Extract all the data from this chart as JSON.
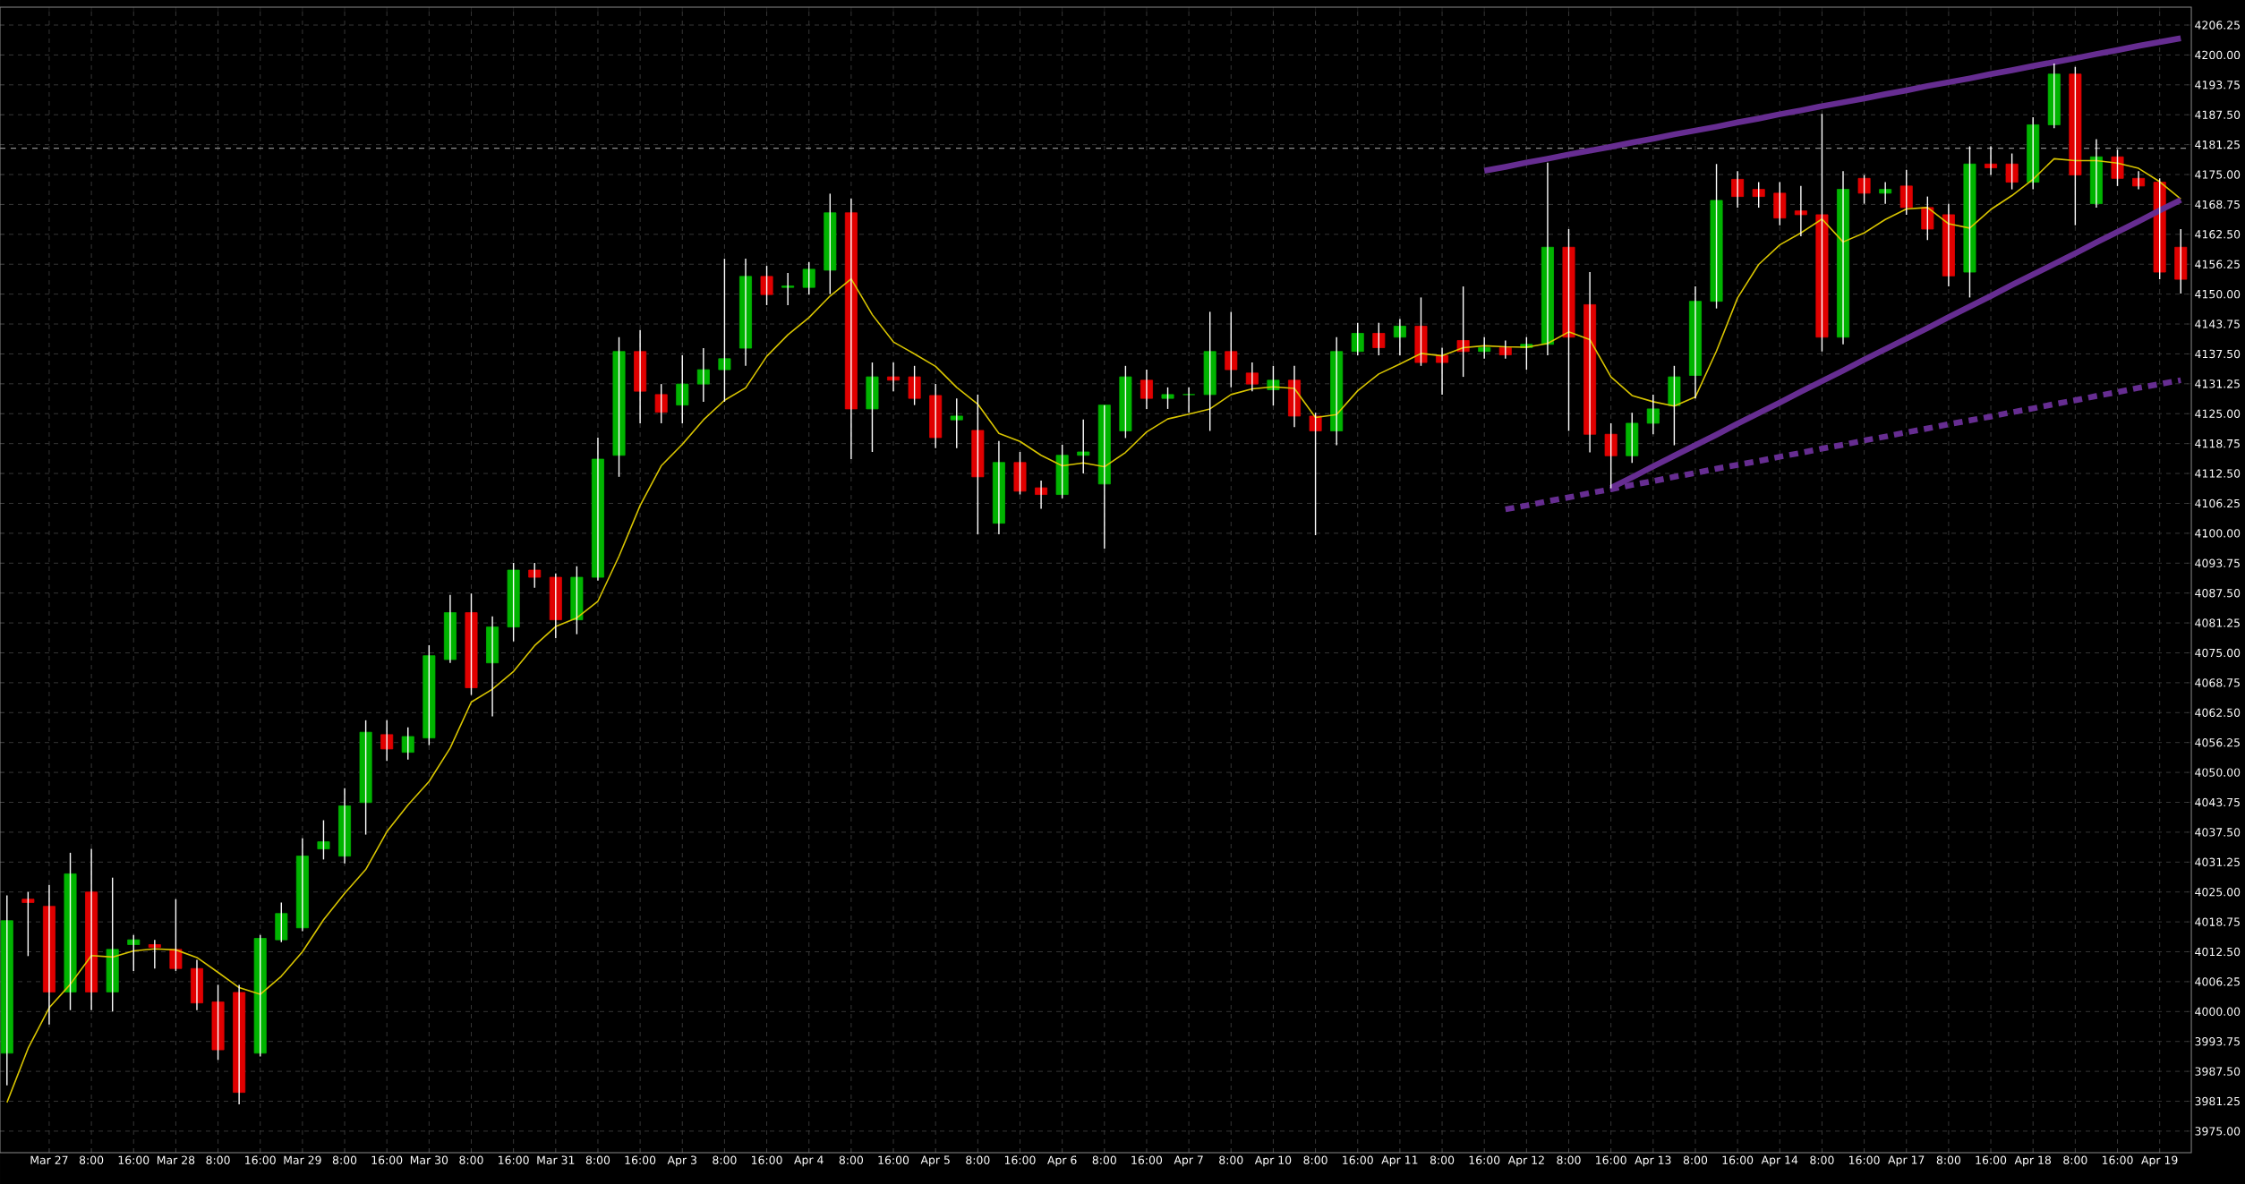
{
  "chart_data": {
    "type": "candlestick",
    "categories": [
      null,
      null,
      "Mar 27",
      null,
      "8:00",
      null,
      "16:00",
      null,
      "Mar 28",
      null,
      "8:00",
      null,
      "16:00",
      null,
      "Mar 29",
      null,
      "8:00",
      null,
      "16:00",
      null,
      "Mar 30",
      null,
      "8:00",
      null,
      "16:00",
      null,
      "Mar 31",
      null,
      "8:00",
      null,
      "16:00",
      null,
      "Apr 3",
      null,
      "8:00",
      null,
      "16:00",
      null,
      "Apr 4",
      null,
      "8:00",
      null,
      "16:00",
      null,
      "Apr 5",
      null,
      "8:00",
      null,
      "16:00",
      null,
      "Apr 6",
      null,
      "8:00",
      null,
      "16:00",
      null,
      "Apr 7",
      null,
      "8:00",
      null,
      "Apr 10",
      null,
      "8:00",
      null,
      "16:00",
      null,
      "Apr 11",
      null,
      "8:00",
      null,
      "16:00",
      null,
      "Apr 12",
      null,
      "8:00",
      null,
      "16:00",
      null,
      "Apr 13",
      null,
      "8:00",
      null,
      "16:00",
      null,
      "Apr 14",
      null,
      "8:00",
      null,
      "16:00",
      null,
      "Apr 17",
      null,
      "8:00",
      null,
      "16:00",
      null,
      "Apr 18",
      null,
      "8:00",
      null,
      "16:00",
      null,
      "Apr 19",
      null
    ],
    "ylim": [
      3970.5,
      4210
    ],
    "yticks": [
      {
        "value": 3975,
        "label": "3975.00"
      },
      {
        "value": 3981.25,
        "label": "3981.25"
      },
      {
        "value": 3987.5,
        "label": "3987.50"
      },
      {
        "value": 3993.75,
        "label": "3993.75"
      },
      {
        "value": 4000,
        "label": "4000.00"
      },
      {
        "value": 4006.25,
        "label": "4006.25"
      },
      {
        "value": 4012.5,
        "label": "4012.50"
      },
      {
        "value": 4018.75,
        "label": "4018.75"
      },
      {
        "value": 4025,
        "label": "4025.00"
      },
      {
        "value": 4031.25,
        "label": "4031.25"
      },
      {
        "value": 4037.5,
        "label": "4037.50"
      },
      {
        "value": 4043.75,
        "label": "4043.75"
      },
      {
        "value": 4050,
        "label": "4050.00"
      },
      {
        "value": 4056.25,
        "label": "4056.25"
      },
      {
        "value": 4062.5,
        "label": "4062.50"
      },
      {
        "value": 4068.75,
        "label": "4068.75"
      },
      {
        "value": 4075,
        "label": "4075.00"
      },
      {
        "value": 4081.25,
        "label": "4081.25"
      },
      {
        "value": 4087.5,
        "label": "4087.50"
      },
      {
        "value": 4093.75,
        "label": "4093.75"
      },
      {
        "value": 4100,
        "label": "4100.00"
      },
      {
        "value": 4106.25,
        "label": "4106.25"
      },
      {
        "value": 4112.5,
        "label": "4112.50"
      },
      {
        "value": 4118.75,
        "label": "4118.75"
      },
      {
        "value": 4125,
        "label": "4125.00"
      },
      {
        "value": 4131.25,
        "label": "4131.25"
      },
      {
        "value": 4137.5,
        "label": "4137.50"
      },
      {
        "value": 4143.75,
        "label": "4143.75"
      },
      {
        "value": 4150,
        "label": "4150.00"
      },
      {
        "value": 4156.25,
        "label": "4156.25"
      },
      {
        "value": 4162.5,
        "label": "4162.50"
      },
      {
        "value": 4168.75,
        "label": "4168.75"
      },
      {
        "value": 4175,
        "label": "4175.00"
      },
      {
        "value": 4181.25,
        "label": "4181.25"
      },
      {
        "value": 4187.5,
        "label": "4187.50"
      },
      {
        "value": 4193.75,
        "label": "4193.75"
      },
      {
        "value": 4200,
        "label": "4200.00"
      },
      {
        "value": 4206.25,
        "label": "4206.25"
      }
    ],
    "grid": true,
    "ref_lines": [
      {
        "axis": "y",
        "value": 4180.5,
        "color": "#8c8c8c",
        "line_style": "dashed"
      }
    ],
    "series": [
      {
        "ohlc": [
          [
            3991.3,
            4024.3,
            3984.6,
            4019.0
          ],
          [
            4023.5,
            4025.0,
            4011.6,
            4022.8
          ],
          [
            4022.0,
            4026.5,
            3997.3,
            4004.1
          ],
          [
            4004.1,
            4033.2,
            4000.3,
            4028.8
          ],
          [
            4025.0,
            4034.0,
            4000.3,
            4004.1
          ],
          [
            4004.1,
            4028.0,
            4000.0,
            4013.0
          ],
          [
            4014.0,
            4016.0,
            4008.5,
            4015.0
          ],
          [
            4014.0,
            4015.0,
            4009.0,
            4013.4
          ],
          [
            4013.0,
            4023.5,
            4008.5,
            4009.0
          ],
          [
            4009.0,
            4010.8,
            4000.3,
            4001.8
          ],
          [
            4002.0,
            4005.6,
            3989.9,
            3992.0
          ],
          [
            4004.0,
            4005.6,
            3980.6,
            3983.1
          ],
          [
            3991.3,
            4016.0,
            3990.6,
            4015.3
          ],
          [
            4015.0,
            4022.8,
            4014.5,
            4020.5
          ],
          [
            4017.5,
            4036.2,
            4016.8,
            4032.5
          ],
          [
            4034.0,
            4040.0,
            4031.8,
            4035.5
          ],
          [
            4032.5,
            4046.7,
            4031.0,
            4043.0
          ],
          [
            4043.7,
            4060.9,
            4037.0,
            4058.4
          ],
          [
            4057.9,
            4060.9,
            4052.4,
            4054.9
          ],
          [
            4054.2,
            4059.4,
            4052.7,
            4057.5
          ],
          [
            4057.2,
            4076.6,
            4055.7,
            4074.4
          ],
          [
            4073.6,
            4087.1,
            4072.9,
            4083.4
          ],
          [
            4083.4,
            4087.4,
            4066.2,
            4067.7
          ],
          [
            4072.9,
            4082.6,
            4061.7,
            4080.4
          ],
          [
            4080.4,
            4093.8,
            4077.4,
            4092.3
          ],
          [
            4092.3,
            4093.8,
            4088.6,
            4090.8
          ],
          [
            4090.8,
            4091.6,
            4078.1,
            4081.9
          ],
          [
            4081.9,
            4093.1,
            4078.9,
            4090.8
          ],
          [
            4090.8,
            4120.0,
            4090.1,
            4115.5
          ],
          [
            4116.3,
            4141.0,
            4111.8,
            4138.0
          ],
          [
            4138.0,
            4142.5,
            4123.0,
            4129.7
          ],
          [
            4129.0,
            4131.2,
            4123.0,
            4125.3
          ],
          [
            4126.8,
            4137.2,
            4123.0,
            4131.2
          ],
          [
            4131.2,
            4138.7,
            4127.5,
            4134.2
          ],
          [
            4134.2,
            4157.4,
            4127.5,
            4136.5
          ],
          [
            4138.7,
            4157.4,
            4135.0,
            4153.7
          ],
          [
            4153.7,
            4155.9,
            4147.7,
            4149.9
          ],
          [
            4151.4,
            4154.4,
            4147.7,
            4151.7
          ],
          [
            4151.4,
            4156.7,
            4149.9,
            4155.2
          ],
          [
            4155.0,
            4171.0,
            4150.0,
            4167.0
          ],
          [
            4167.0,
            4170.0,
            4115.5,
            4126.0
          ],
          [
            4126.0,
            4135.7,
            4117.0,
            4132.7
          ],
          [
            4132.7,
            4135.7,
            4129.7,
            4132.0
          ],
          [
            4132.7,
            4135.0,
            4126.8,
            4128.2
          ],
          [
            4128.8,
            4131.2,
            4117.8,
            4120.0
          ],
          [
            4123.7,
            4128.2,
            4117.8,
            4124.5
          ],
          [
            4121.5,
            4129.0,
            4099.8,
            4111.8
          ],
          [
            4102.1,
            4119.3,
            4099.8,
            4114.8
          ],
          [
            4114.8,
            4117.0,
            4108.1,
            4108.8
          ],
          [
            4109.5,
            4111.0,
            4105.1,
            4108.1
          ],
          [
            4108.1,
            4118.5,
            4107.3,
            4116.3
          ],
          [
            4116.3,
            4123.8,
            4112.5,
            4117.0
          ],
          [
            4110.3,
            4126.8,
            4096.8,
            4126.8
          ],
          [
            4121.4,
            4135.0,
            4119.9,
            4132.7
          ],
          [
            4132.0,
            4134.2,
            4126.0,
            4128.2
          ],
          [
            4128.2,
            4130.5,
            4126.0,
            4129.0
          ],
          [
            4129.0,
            4130.5,
            4125.2,
            4129.0
          ],
          [
            4129.0,
            4146.3,
            4121.4,
            4138.0
          ],
          [
            4138.0,
            4146.3,
            4130.5,
            4134.2
          ],
          [
            4133.5,
            4135.7,
            4129.7,
            4131.2
          ],
          [
            4130.0,
            4135.0,
            4126.7,
            4132.0
          ],
          [
            4132.0,
            4135.0,
            4122.2,
            4124.5
          ],
          [
            4124.5,
            4125.2,
            4099.6,
            4121.4
          ],
          [
            4121.4,
            4141.0,
            4118.4,
            4138.0
          ],
          [
            4138.0,
            4144.0,
            4137.2,
            4141.8
          ],
          [
            4141.8,
            4144.0,
            4137.2,
            4138.8
          ],
          [
            4141.0,
            4144.8,
            4137.2,
            4143.3
          ],
          [
            4143.3,
            4149.3,
            4135.0,
            4135.7
          ],
          [
            4137.2,
            4138.8,
            4129.0,
            4135.7
          ],
          [
            4140.3,
            4151.6,
            4132.7,
            4138.0
          ],
          [
            4138.0,
            4141.0,
            4136.5,
            4138.8
          ],
          [
            4138.8,
            4140.3,
            4136.5,
            4137.3
          ],
          [
            4138.8,
            4141.0,
            4134.2,
            4139.5
          ],
          [
            4139.5,
            4177.5,
            4137.2,
            4159.8
          ],
          [
            4159.8,
            4163.6,
            4121.4,
            4141.0
          ],
          [
            4147.8,
            4154.6,
            4116.9,
            4120.7
          ],
          [
            4120.7,
            4123.0,
            4109.4,
            4116.2
          ],
          [
            4116.2,
            4125.2,
            4114.7,
            4123.0
          ],
          [
            4123.0,
            4129.0,
            4120.7,
            4126.0
          ],
          [
            4126.7,
            4135.0,
            4118.4,
            4132.7
          ],
          [
            4133.0,
            4151.6,
            4128.2,
            4148.5
          ],
          [
            4148.5,
            4177.2,
            4147.0,
            4169.6
          ],
          [
            4174.0,
            4175.7,
            4168.1,
            4170.4
          ],
          [
            4171.9,
            4173.4,
            4168.1,
            4170.4
          ],
          [
            4171.1,
            4173.4,
            4164.4,
            4165.9
          ],
          [
            4167.4,
            4172.6,
            4162.1,
            4166.6
          ],
          [
            4166.6,
            4187.7,
            4138.0,
            4141.0
          ],
          [
            4141.0,
            4175.7,
            4139.5,
            4171.9
          ],
          [
            4174.2,
            4174.9,
            4168.9,
            4171.1
          ],
          [
            4171.1,
            4173.4,
            4168.9,
            4171.9
          ],
          [
            4172.6,
            4176.0,
            4166.6,
            4168.1
          ],
          [
            4168.1,
            4170.4,
            4161.3,
            4163.6
          ],
          [
            4166.6,
            4168.9,
            4151.6,
            4153.8
          ],
          [
            4154.6,
            4180.9,
            4149.3,
            4177.2
          ],
          [
            4177.2,
            4180.9,
            4174.9,
            4176.4
          ],
          [
            4177.2,
            4179.4,
            4171.9,
            4173.4
          ],
          [
            4173.4,
            4187.0,
            4171.9,
            4185.4
          ],
          [
            4185.4,
            4198.2,
            4184.7,
            4196.0
          ],
          [
            4196.0,
            4197.5,
            4164.4,
            4174.9
          ],
          [
            4168.9,
            4182.4,
            4168.1,
            4178.7
          ],
          [
            4178.7,
            4180.2,
            4172.6,
            4174.2
          ],
          [
            4174.2,
            4175.7,
            4171.9,
            4172.6
          ],
          [
            4173.4,
            4174.2,
            4153.1,
            4154.6
          ],
          [
            4159.8,
            4163.6,
            4150.1,
            4153.1
          ]
        ],
        "colors": [
          "#00b400",
          "#e00000",
          "#e00000",
          "#00b400",
          "#e00000",
          "#00b400",
          "#00b400",
          "#e00000",
          "#e00000",
          "#e00000",
          "#e00000",
          "#e00000",
          "#00b400",
          "#00b400",
          "#00b400",
          "#00b400",
          "#00b400",
          "#00b400",
          "#e00000",
          "#00b400",
          "#00b400",
          "#00b400",
          "#e00000",
          "#00b400",
          "#00b400",
          "#e00000",
          "#e00000",
          "#00b400",
          "#00b400",
          "#00b400",
          "#e00000",
          "#e00000",
          "#00b400",
          "#00b400",
          "#00b400",
          "#00b400",
          "#e00000",
          "#00b400",
          "#00b400",
          "#00b400",
          "#e00000",
          "#00b400",
          "#e00000",
          "#e00000",
          "#e00000",
          "#00b400",
          "#e00000",
          "#00b400",
          "#e00000",
          "#e00000",
          "#00b400",
          "#00b400",
          "#00b400",
          "#00b400",
          "#e00000",
          "#00b400",
          "#00b400",
          "#00b400",
          "#e00000",
          "#e00000",
          "#00b400",
          "#e00000",
          "#e00000",
          "#00b400",
          "#00b400",
          "#e00000",
          "#00b400",
          "#e00000",
          "#e00000",
          "#e00000",
          "#00b400",
          "#e00000",
          "#00b400",
          "#00b400",
          "#e00000",
          "#e00000",
          "#e00000",
          "#00b400",
          "#00b400",
          "#00b400",
          "#00b400",
          "#00b400",
          "#e00000",
          "#e00000",
          "#e00000",
          "#e00000",
          "#e00000",
          "#00b400",
          "#e00000",
          "#00b400",
          "#e00000",
          "#e00000",
          "#e00000",
          "#00b400",
          "#e00000",
          "#e00000",
          "#00b400",
          "#00b400",
          "#e00000",
          "#00b400",
          "#e00000",
          "#e00000",
          "#e00000",
          "#e00000"
        ]
      },
      {
        "type": "line",
        "color": "#d8c400",
        "values": [
          3981.0,
          3992.3,
          4000.8,
          4005.7,
          4011.7,
          4011.4,
          4012.7,
          4013.1,
          4012.9,
          4011.3,
          4008.2,
          4005.0,
          4003.6,
          4007.4,
          4012.5,
          4019.2,
          4024.7,
          4029.7,
          4037.6,
          4043.2,
          4048.1,
          4055.1,
          4064.7,
          4067.4,
          4071.1,
          4076.5,
          4080.5,
          4082.3,
          4085.8,
          4095.2,
          4105.8,
          4114.1,
          4118.6,
          4123.7,
          4127.8,
          4130.4,
          4137.0,
          4141.5,
          4145.1,
          4149.6,
          4153.2,
          4145.7,
          4140.0,
          4137.5,
          4134.9,
          4130.5,
          4127.0,
          4120.9,
          4119.2,
          4116.3,
          4114.1,
          4114.7,
          4113.9,
          4116.9,
          4121.2,
          4123.9,
          4124.9,
          4126.0,
          4129.0,
          4130.2,
          4130.6,
          4130.3,
          4124.2,
          4124.8,
          4129.8,
          4133.3,
          4135.4,
          4137.6,
          4137.1,
          4138.8,
          4139.2,
          4139.0,
          4138.9,
          4139.7,
          4142.1,
          4140.5,
          4132.7,
          4128.8,
          4127.5,
          4126.6,
          4128.5,
          4138.1,
          4149.2,
          4156.2,
          4160.3,
          4162.8,
          4165.7,
          4160.9,
          4162.8,
          4165.6,
          4167.8,
          4168.1,
          4164.7,
          4163.8,
          4167.7,
          4170.6,
          4174.0,
          4178.3,
          4177.9,
          4177.9,
          4177.4,
          4176.3,
          4173.5,
          4169.9
        ]
      },
      {
        "type": "line",
        "color": "#662d91",
        "line_style": "solid",
        "values": [
          null,
          null,
          null,
          null,
          null,
          null,
          null,
          null,
          null,
          null,
          null,
          null,
          null,
          null,
          null,
          null,
          null,
          null,
          null,
          null,
          null,
          null,
          null,
          null,
          null,
          null,
          null,
          null,
          null,
          null,
          null,
          null,
          null,
          null,
          null,
          null,
          null,
          null,
          null,
          null,
          null,
          null,
          null,
          null,
          null,
          null,
          null,
          null,
          null,
          null,
          null,
          null,
          null,
          null,
          null,
          null,
          null,
          null,
          null,
          null,
          null,
          null,
          null,
          null,
          null,
          null,
          null,
          null,
          null,
          null,
          4175.8,
          4176.6,
          4177.5,
          4178.3,
          4179.2,
          4180.0,
          4180.8,
          4181.7,
          4182.5,
          4183.4,
          4184.2,
          4185.0,
          4185.9,
          4186.7,
          4187.6,
          4188.4,
          4189.3,
          4190.1,
          4190.9,
          4191.8,
          4192.6,
          4193.5,
          4194.3,
          4195.1,
          4196.0,
          4196.8,
          4197.7,
          4198.5,
          4199.3,
          4200.2,
          4201.0,
          4201.9,
          4202.7,
          4203.5
        ]
      },
      {
        "type": "line",
        "color": "#662d91",
        "line_style": "solid",
        "values": [
          null,
          null,
          null,
          null,
          null,
          null,
          null,
          null,
          null,
          null,
          null,
          null,
          null,
          null,
          null,
          null,
          null,
          null,
          null,
          null,
          null,
          null,
          null,
          null,
          null,
          null,
          null,
          null,
          null,
          null,
          null,
          null,
          null,
          null,
          null,
          null,
          null,
          null,
          null,
          null,
          null,
          null,
          null,
          null,
          null,
          null,
          null,
          null,
          null,
          null,
          null,
          null,
          null,
          null,
          null,
          null,
          null,
          null,
          null,
          null,
          null,
          null,
          null,
          null,
          null,
          null,
          null,
          null,
          null,
          null,
          null,
          null,
          null,
          null,
          null,
          null,
          4109.5,
          4111.7,
          4114.0,
          4116.2,
          4118.4,
          4120.6,
          4122.9,
          4125.1,
          4127.3,
          4129.6,
          4131.8,
          4134.0,
          4136.3,
          4138.5,
          4140.7,
          4142.9,
          4145.2,
          4147.4,
          4149.6,
          4151.9,
          4154.1,
          4156.3,
          4158.5,
          4160.8,
          4163.0,
          4165.2,
          4167.5,
          4169.7
        ]
      },
      {
        "type": "line",
        "color": "#662d91",
        "line_style": "dotted",
        "values": [
          null,
          null,
          null,
          null,
          null,
          null,
          null,
          null,
          null,
          null,
          null,
          null,
          null,
          null,
          null,
          null,
          null,
          null,
          null,
          null,
          null,
          null,
          null,
          null,
          null,
          null,
          null,
          null,
          null,
          null,
          null,
          null,
          null,
          null,
          null,
          null,
          null,
          null,
          null,
          null,
          null,
          null,
          null,
          null,
          null,
          null,
          null,
          null,
          null,
          null,
          null,
          null,
          null,
          null,
          null,
          null,
          null,
          null,
          null,
          null,
          null,
          null,
          null,
          null,
          null,
          null,
          null,
          null,
          null,
          null,
          null,
          4105.0,
          4105.8,
          4106.7,
          4107.5,
          4108.4,
          4109.2,
          4110.1,
          4110.9,
          4111.8,
          4112.6,
          4113.5,
          4114.3,
          4115.1,
          4116.0,
          4116.8,
          4117.7,
          4118.5,
          4119.4,
          4120.2,
          4121.1,
          4121.9,
          4122.8,
          4123.6,
          4124.4,
          4125.3,
          4126.1,
          4127.0,
          4127.8,
          4128.7,
          4129.5,
          4130.4,
          4131.2,
          4132.0
        ]
      }
    ]
  }
}
